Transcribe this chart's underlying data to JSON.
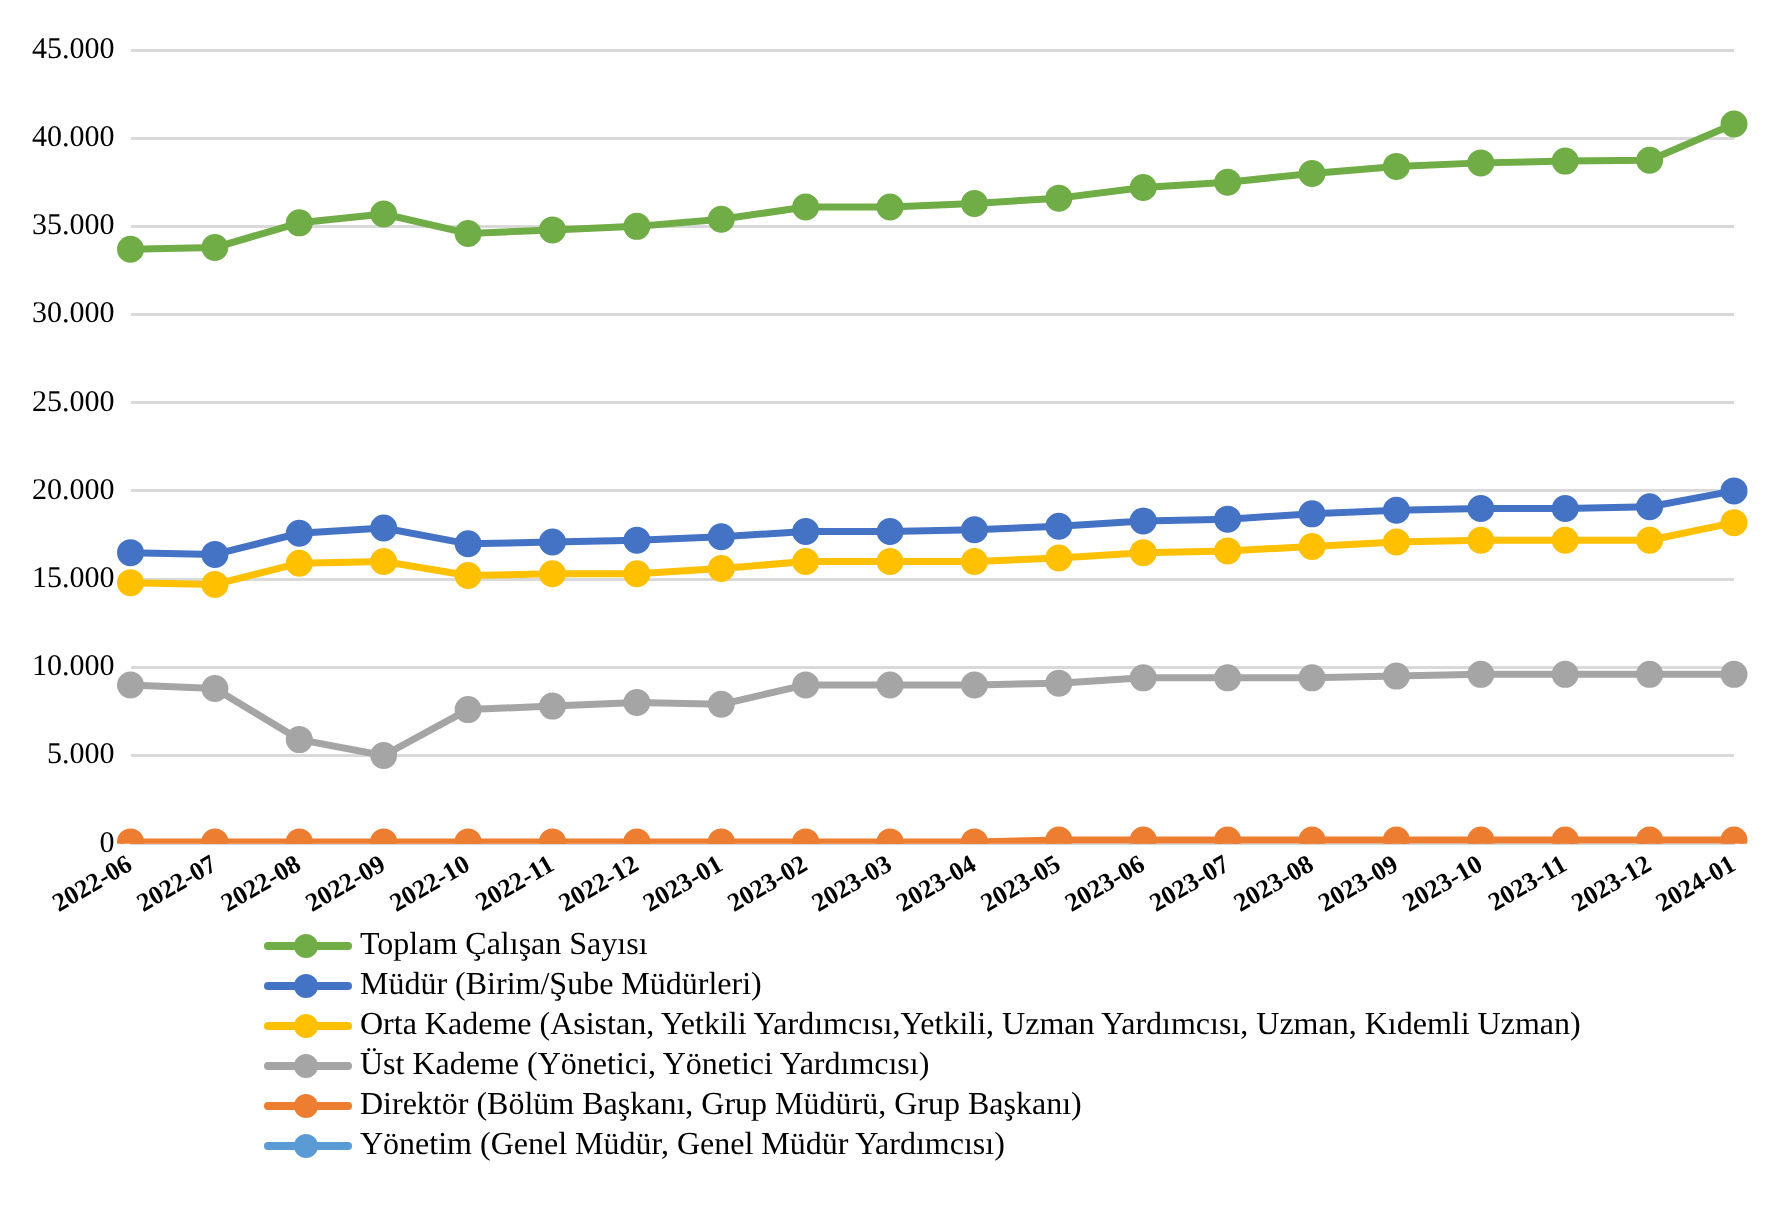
{
  "chart_data": {
    "type": "line",
    "categories": [
      "2022-06",
      "2022-07",
      "2022-08",
      "2022-09",
      "2022-10",
      "2022-11",
      "2022-12",
      "2023-01",
      "2023-02",
      "2023-03",
      "2023-04",
      "2023-05",
      "2023-06",
      "2023-07",
      "2023-08",
      "2023-09",
      "2023-10",
      "2023-11",
      "2023-12",
      "2024-01"
    ],
    "series": [
      {
        "name": "Toplam Çalışan Sayısı",
        "color": "#70ad47",
        "values": [
          33700,
          33800,
          35200,
          35700,
          34600,
          34800,
          35000,
          35400,
          36100,
          36100,
          36300,
          36600,
          37200,
          37500,
          38000,
          38400,
          38600,
          38700,
          38750,
          40800
        ]
      },
      {
        "name": "Müdür (Birim/Şube Müdürleri)",
        "color": "#4472c4",
        "values": [
          16500,
          16400,
          17600,
          17900,
          17000,
          17100,
          17200,
          17400,
          17700,
          17700,
          17800,
          18000,
          18300,
          18400,
          18700,
          18900,
          19000,
          19000,
          19100,
          20000
        ]
      },
      {
        "name": "Orta Kademe (Asistan, Yetkili Yardımcısı,Yetkili, Uzman Yardımcısı, Uzman, Kıdemli Uzman)",
        "color": "#ffc000",
        "values": [
          14800,
          14700,
          15900,
          16000,
          15200,
          15300,
          15300,
          15600,
          16000,
          16000,
          16000,
          16200,
          16500,
          16600,
          16850,
          17100,
          17200,
          17200,
          17200,
          18200
        ]
      },
      {
        "name": "Üst Kademe (Yönetici, Yönetici Yardımcısı)",
        "color": "#a5a5a5",
        "values": [
          9000,
          8800,
          5900,
          5000,
          7600,
          7800,
          8000,
          7900,
          9000,
          9000,
          9000,
          9100,
          9400,
          9400,
          9400,
          9500,
          9600,
          9600,
          9600,
          9600
        ]
      },
      {
        "name": "Direktör (Bölüm Başkanı, Grup Müdürü, Grup Başkanı)",
        "color": "#ed7d31",
        "values": [
          100,
          100,
          100,
          100,
          100,
          100,
          100,
          100,
          100,
          100,
          100,
          200,
          200,
          200,
          200,
          200,
          200,
          200,
          200,
          200
        ]
      },
      {
        "name": "Yönetim (Genel Müdür, Genel Müdür Yardımcısı)",
        "color": "#5b9bd5",
        "values": [
          null,
          null,
          null,
          null,
          null,
          null,
          null,
          null,
          null,
          null,
          null,
          null,
          null,
          null,
          null,
          null,
          null,
          null,
          null,
          null
        ]
      }
    ],
    "ylim": [
      0,
      45000
    ],
    "yticks": [
      {
        "value": 0,
        "label": "0"
      },
      {
        "value": 5000,
        "label": "5.000"
      },
      {
        "value": 10000,
        "label": "10.000"
      },
      {
        "value": 15000,
        "label": "15.000"
      },
      {
        "value": 20000,
        "label": "20.000"
      },
      {
        "value": 25000,
        "label": "25.000"
      },
      {
        "value": 30000,
        "label": "30.000"
      },
      {
        "value": 35000,
        "label": "35.000"
      },
      {
        "value": 40000,
        "label": "40.000"
      },
      {
        "value": 45000,
        "label": "45.000"
      }
    ],
    "grid": "y",
    "legend": "bottom",
    "marker": "circle",
    "line_style": "solid"
  }
}
